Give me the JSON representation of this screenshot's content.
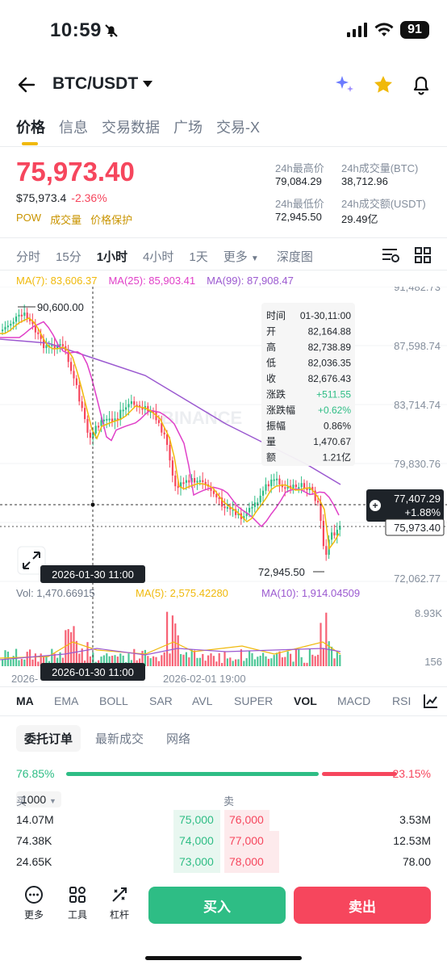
{
  "status": {
    "time": "10:59",
    "battery": "91"
  },
  "header": {
    "pair": "BTC/USDT"
  },
  "tabs": [
    "价格",
    "信息",
    "交易数据",
    "广场",
    "交易-X"
  ],
  "price": {
    "last": "75,973.40",
    "usd": "$75,973.4",
    "change": "-2.36%"
  },
  "tags": [
    "POW",
    "成交量",
    "价格保护"
  ],
  "stats": [
    {
      "label": "24h最高价",
      "value": "79,084.29"
    },
    {
      "label": "24h成交量(BTC)",
      "value": "38,712.96"
    },
    {
      "label": "24h最低价",
      "value": "72,945.50"
    },
    {
      "label": "24h成交额(USDT)",
      "value": "29.49亿"
    }
  ],
  "intervals": [
    "分时",
    "15分",
    "1小时",
    "4小时",
    "1天",
    "更多",
    "深度图"
  ],
  "ma": {
    "ma7": "MA(7): 83,606.37",
    "ma25": "MA(25): 85,903.41",
    "ma99": "MA(99): 87,908.47"
  },
  "axis": {
    "y": [
      "91,482.73",
      "87,598.74",
      "83,714.74",
      "79,830.76",
      "72,062.77"
    ]
  },
  "annotations": {
    "high": "90,600.00",
    "low": "72,945.50",
    "crosshair_date": "2026-01-30 11:00",
    "watermark": "BINANCE"
  },
  "current_tag": {
    "price": "77,407.29",
    "pct": "+1.88%",
    "last": "75,973.40"
  },
  "tooltip": [
    {
      "k": "时间",
      "v": "01-30,11:00"
    },
    {
      "k": "开",
      "v": "82,164.88"
    },
    {
      "k": "高",
      "v": "82,738.89"
    },
    {
      "k": "低",
      "v": "82,036.35"
    },
    {
      "k": "收",
      "v": "82,676.43"
    },
    {
      "k": "涨跌",
      "v": "+511.55"
    },
    {
      "k": "涨跌幅",
      "v": "+0.62%"
    },
    {
      "k": "振幅",
      "v": "0.86%"
    },
    {
      "k": "量",
      "v": "1,470.67"
    },
    {
      "k": "额",
      "v": "1.21亿"
    }
  ],
  "vol": {
    "label": "Vol: 1,470.66915",
    "ma5": "MA(5): 2,575.42280",
    "ma10": "MA(10): 1,914.04509",
    "y_top": "8.93K",
    "y_bottom": "156"
  },
  "x_axis": {
    "d1": "2026-",
    "d2": "2026-02-01 19:00"
  },
  "indicators": [
    "MA",
    "EMA",
    "BOLL",
    "SAR",
    "AVL",
    "SUPER",
    "VOL",
    "MACD",
    "RSI"
  ],
  "orderbook_tabs": [
    "委托订单",
    "最新成交",
    "网络"
  ],
  "ratio": {
    "buy": "76.85%",
    "sell": "23.15%",
    "buy_frac": 0.7685
  },
  "orderbook": {
    "buy_label": "买",
    "sell_label": "卖",
    "depth": "1000",
    "rows": [
      {
        "bq": "14.07M",
        "bp": "75,000",
        "ap": "76,000",
        "aq": "3.53M"
      },
      {
        "bq": "74.38K",
        "bp": "74,000",
        "ap": "77,000",
        "aq": "12.53M"
      },
      {
        "bq": "24.65K",
        "bp": "73,000",
        "ap": "78,000",
        "aq": "78.00"
      }
    ]
  },
  "footer": {
    "more": "更多",
    "tools": "工具",
    "lever": "杠杆",
    "buy": "买入",
    "sell": "卖出"
  },
  "colors": {
    "up": "#2ebd85",
    "down": "#f6465d",
    "ma7": "#f0b90b",
    "ma25": "#e040c8",
    "ma99": "#9b59d0",
    "accent": "#f0b90b"
  }
}
